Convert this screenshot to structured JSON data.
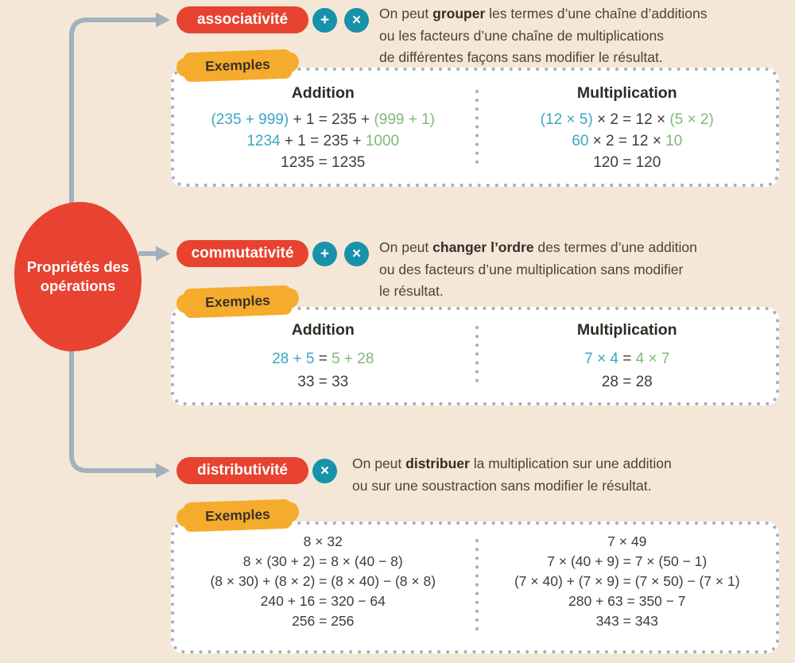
{
  "root": {
    "title": "Propriétés des opérations"
  },
  "labels": {
    "examples": "Exemples"
  },
  "colors": {
    "background": "#f4e7d7",
    "red": "#e84230",
    "teal": "#1792aa",
    "yellow": "#f5ac2c",
    "math_blue": "#3ca6c3",
    "math_green": "#80b978",
    "math_dark": "#423c34",
    "connector_gray": "#a3b1bc",
    "dots_gray": "#a0b0ba"
  },
  "sections": [
    {
      "badge": "associativité",
      "operators": [
        "+",
        "×"
      ],
      "desc_lines": [
        [
          {
            "t": "On peut "
          },
          {
            "t": "grouper",
            "b": true
          },
          {
            "t": " les termes d’une chaîne d’additions"
          }
        ],
        [
          {
            "t": "ou les facteurs d’une chaîne de multiplications"
          }
        ],
        [
          {
            "t": "de différentes façons sans modifier le résultat."
          }
        ]
      ],
      "columns": [
        {
          "header": "Addition",
          "lines": [
            [
              {
                "t": "(235 + 999)",
                "c": "b"
              },
              {
                "t": " + 1 = 235 + ",
                "c": "d"
              },
              {
                "t": "(999 + 1)",
                "c": "g"
              }
            ],
            [
              {
                "t": "1234",
                "c": "b"
              },
              {
                "t": " + 1 = 235 + ",
                "c": "d"
              },
              {
                "t": "1000",
                "c": "g"
              }
            ],
            [
              {
                "t": "1235 = 1235",
                "c": "d"
              }
            ]
          ]
        },
        {
          "header": "Multiplication",
          "lines": [
            [
              {
                "t": "(12 × 5)",
                "c": "b"
              },
              {
                "t": " × 2 = 12 × ",
                "c": "d"
              },
              {
                "t": "(5 × 2)",
                "c": "g"
              }
            ],
            [
              {
                "t": "60",
                "c": "b"
              },
              {
                "t": " × 2 = 12 × ",
                "c": "d"
              },
              {
                "t": "10",
                "c": "g"
              }
            ],
            [
              {
                "t": "120 = 120",
                "c": "d"
              }
            ]
          ]
        }
      ]
    },
    {
      "badge": "commutativité",
      "operators": [
        "+",
        "×"
      ],
      "desc_lines": [
        [
          {
            "t": "On peut "
          },
          {
            "t": "changer l’ordre",
            "b": true
          },
          {
            "t": " des termes d’une addition"
          }
        ],
        [
          {
            "t": "ou des facteurs d’une multiplication sans modifier"
          }
        ],
        [
          {
            "t": "le résultat."
          }
        ]
      ],
      "columns": [
        {
          "header": "Addition",
          "lines": [
            [
              {
                "t": "28 + 5",
                "c": "b"
              },
              {
                "t": " = ",
                "c": "d"
              },
              {
                "t": "5 + 28",
                "c": "g"
              }
            ],
            [
              {
                "t": "33 = 33",
                "c": "d"
              }
            ]
          ]
        },
        {
          "header": "Multiplication",
          "lines": [
            [
              {
                "t": "7 × 4",
                "c": "b"
              },
              {
                "t": " = ",
                "c": "d"
              },
              {
                "t": "4 × 7",
                "c": "g"
              }
            ],
            [
              {
                "t": "28 = 28",
                "c": "d"
              }
            ]
          ]
        }
      ]
    },
    {
      "badge": "distributivité",
      "operators": [
        "×"
      ],
      "desc_lines": [
        [
          {
            "t": "On peut "
          },
          {
            "t": "distribuer",
            "b": true
          },
          {
            "t": " la multiplication sur une addition"
          }
        ],
        [
          {
            "t": "ou sur une soustraction sans modifier le résultat."
          }
        ]
      ],
      "columns": [
        {
          "lines": [
            [
              {
                "t": "8 × 32",
                "c": "d"
              }
            ],
            [
              {
                "t": "8 × (30 + 2) = 8 × (40 − 8)",
                "c": "d"
              }
            ],
            [
              {
                "t": "(8 × 30) + (8 × 2) = (8 × 40) − (8 × 8)",
                "c": "d"
              }
            ],
            [
              {
                "t": "240 + 16 = 320 − 64",
                "c": "d"
              }
            ],
            [
              {
                "t": "256 = 256",
                "c": "d"
              }
            ]
          ]
        },
        {
          "lines": [
            [
              {
                "t": "7 × 49",
                "c": "d"
              }
            ],
            [
              {
                "t": "7 × (40 + 9) = 7 × (50 − 1)",
                "c": "d"
              }
            ],
            [
              {
                "t": "(7 × 40) + (7 × 9) = (7 × 50) − (7 × 1)",
                "c": "d"
              }
            ],
            [
              {
                "t": "280 + 63 = 350 − 7",
                "c": "d"
              }
            ],
            [
              {
                "t": "343 = 343",
                "c": "d"
              }
            ]
          ]
        }
      ]
    }
  ]
}
